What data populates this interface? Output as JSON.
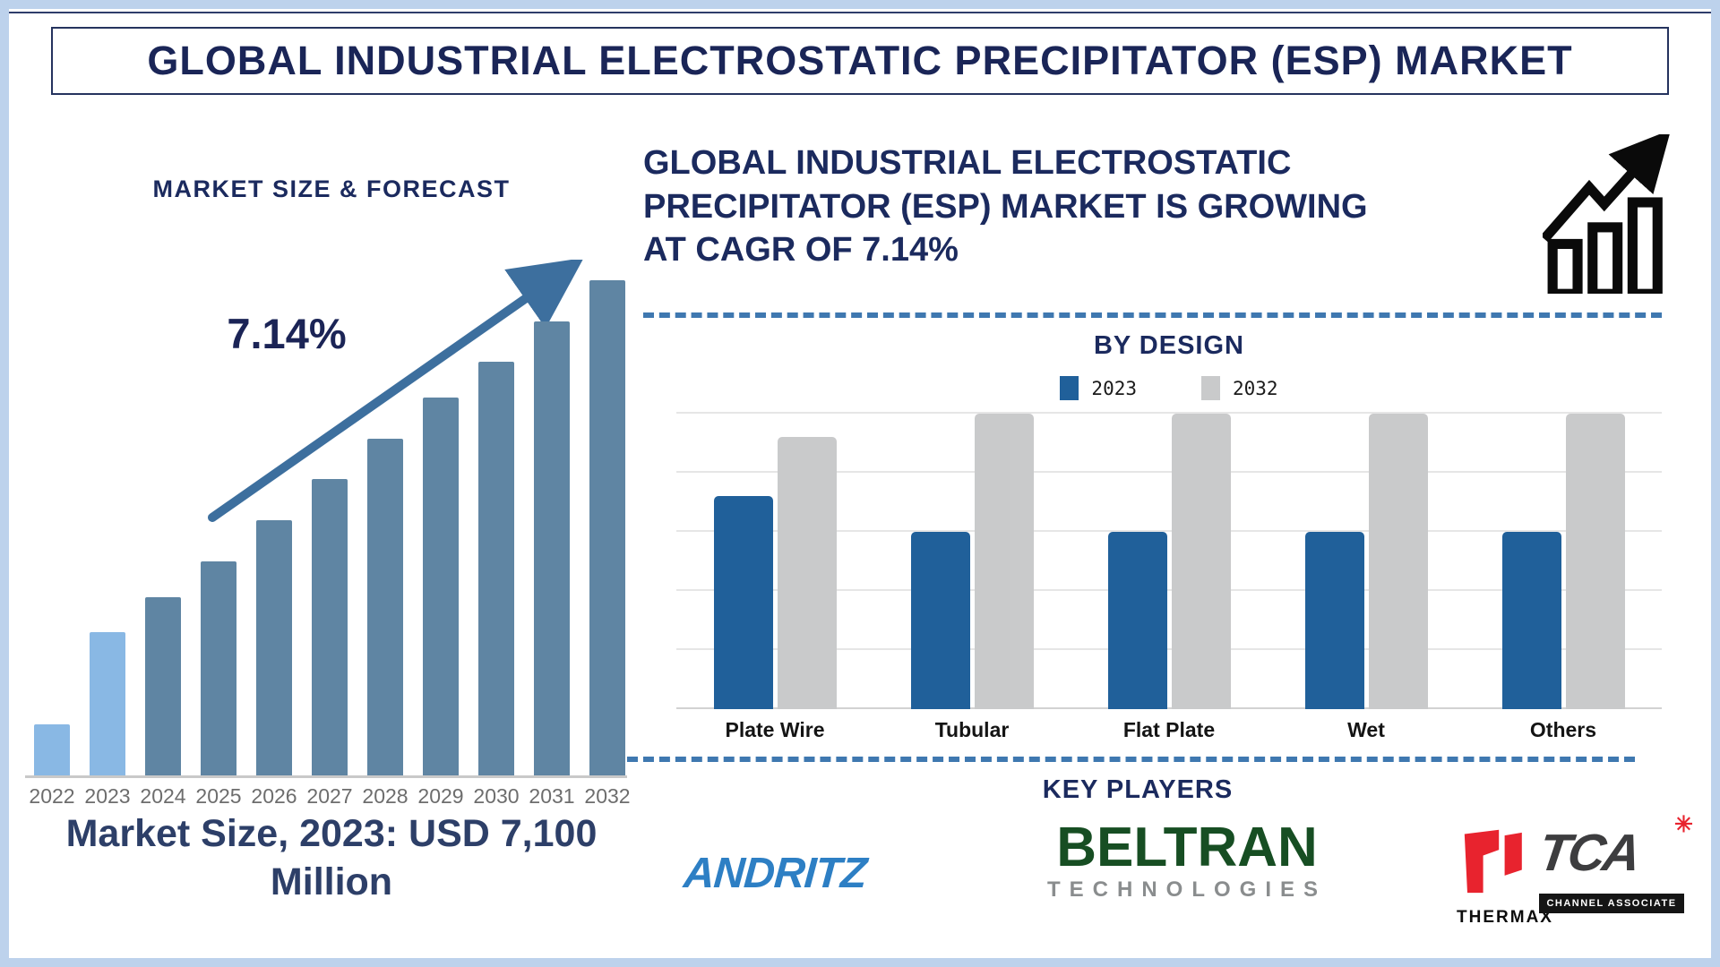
{
  "page": {
    "title": "GLOBAL INDUSTRIAL ELECTROSTATIC PRECIPITATOR (ESP) MARKET"
  },
  "left_panel": {
    "heading": "MARKET SIZE & FORECAST",
    "cagr_label": "7.14%",
    "market_size_note": "Market Size, 2023: USD 7,100 Million"
  },
  "right_panel": {
    "heading_lines": [
      "GLOBAL INDUSTRIAL ELECTROSTATIC",
      "PRECIPITATOR (ESP) MARKET IS GROWING",
      "AT CAGR OF 7.14%"
    ],
    "by_design_title": "BY DESIGN",
    "key_players_title": "KEY PLAYERS",
    "key_players": [
      {
        "name": "ANDRITZ"
      },
      {
        "name": "BELTRAN",
        "subtitle": "TECHNOLOGIES"
      },
      {
        "name": "THERMAX",
        "associate": "TCA",
        "associate_label": "CHANNEL ASSOCIATE",
        "starburst": "✳"
      }
    ]
  },
  "chart_data": [
    {
      "type": "bar",
      "title": "MARKET SIZE & FORECAST",
      "categories": [
        "2022",
        "2023",
        "2024",
        "2025",
        "2026",
        "2027",
        "2028",
        "2029",
        "2030",
        "2031",
        "2032"
      ],
      "values_relative_pct": [
        10,
        28,
        35,
        42,
        50,
        58,
        66,
        74,
        81,
        89,
        97
      ],
      "note": "no y-axis shown; bar heights are relative (% of plot height)",
      "annotations": {
        "cagr": "7.14%",
        "market_size_2023": "USD 7,100 Million"
      },
      "highlight_categories": [
        "2022",
        "2023"
      ],
      "bar_color": "#5f85a3",
      "highlight_color": "#89b8e4",
      "grid": false,
      "legend": false
    },
    {
      "type": "bar",
      "title": "BY DESIGN",
      "categories": [
        "Plate Wire",
        "Tubular",
        "Flat Plate",
        "Wet",
        "Others"
      ],
      "series": [
        {
          "name": "2023",
          "color": "#20609a",
          "values_relative_pct": [
            72,
            60,
            60,
            60,
            60
          ]
        },
        {
          "name": "2032",
          "color": "#c9cacb",
          "values_relative_pct": [
            92,
            100,
            100,
            100,
            100
          ]
        }
      ],
      "note": "no y-axis shown; bar heights are relative (% of plot height)",
      "legend_position": "top",
      "grid": true,
      "gridline_count": 6
    }
  ],
  "colors": {
    "frame_blue": "#bdd2ec",
    "navy_text": "#1b2a5e",
    "dashed_divider": "#3f78b0",
    "cagr_arrow": "#3d6f9e",
    "growth_icon": "#0a0a0a",
    "andritz_blue": "#2d7fc4",
    "beltran_green": "#174e23",
    "technologies_gray": "#8a8d8e",
    "thermax_red": "#e8232e",
    "tca_dark": "#3d3d3f"
  }
}
